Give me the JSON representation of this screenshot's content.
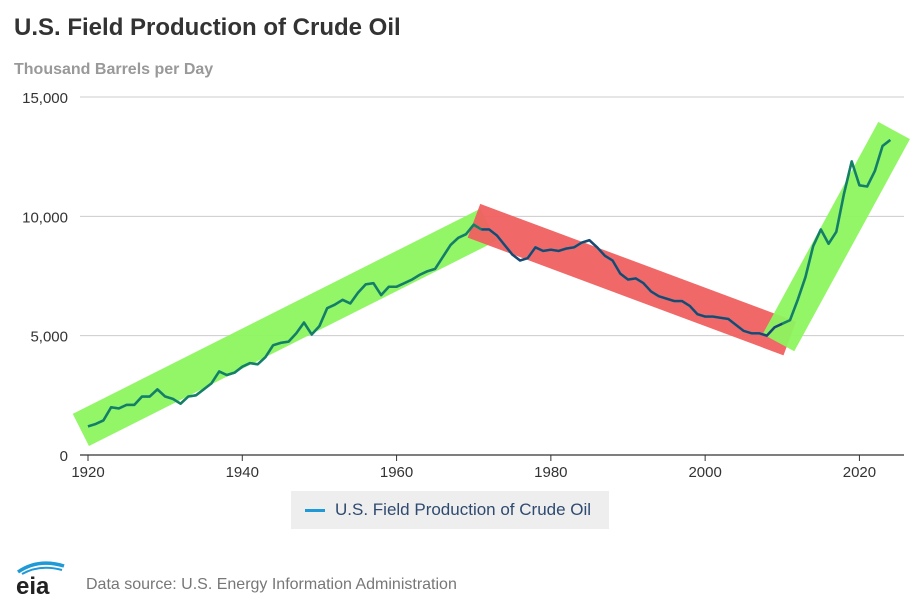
{
  "title": "U.S. Field Production of Crude Oil",
  "subtitle": "Thousand Barrels per Day",
  "legend": {
    "label": "U.S. Field Production of Crude Oil"
  },
  "source": "Data source: U.S. Energy Information Administration",
  "logo_text": "eia",
  "colors": {
    "series": "#1f9ad6",
    "up_trend_band": "#8cf55e",
    "down_trend_band": "#f06060",
    "line_over_green": "#147a4a",
    "line_over_red": "#1d3a5c",
    "grid": "#cccccc"
  },
  "chart_data": {
    "type": "line",
    "title": "U.S. Field Production of Crude Oil",
    "ylabel": "Thousand Barrels per Day",
    "xlim": [
      1920,
      2025
    ],
    "ylim": [
      0,
      15000
    ],
    "x_ticks": [
      1920,
      1940,
      1960,
      1980,
      2000,
      2020
    ],
    "y_ticks": [
      0,
      5000,
      10000,
      15000
    ],
    "y_tick_labels": [
      "0",
      "5,000",
      "10,000",
      "15,000"
    ],
    "grid": "horizontal",
    "legend_position": "bottom",
    "series": [
      {
        "name": "U.S. Field Production of Crude Oil",
        "x": [
          1920,
          1921,
          1922,
          1923,
          1924,
          1925,
          1926,
          1927,
          1928,
          1929,
          1930,
          1931,
          1932,
          1933,
          1934,
          1935,
          1936,
          1937,
          1938,
          1939,
          1940,
          1941,
          1942,
          1943,
          1944,
          1945,
          1946,
          1947,
          1948,
          1949,
          1950,
          1951,
          1952,
          1953,
          1954,
          1955,
          1956,
          1957,
          1958,
          1959,
          1960,
          1961,
          1962,
          1963,
          1964,
          1965,
          1966,
          1967,
          1968,
          1969,
          1970,
          1971,
          1972,
          1973,
          1974,
          1975,
          1976,
          1977,
          1978,
          1979,
          1980,
          1981,
          1982,
          1983,
          1984,
          1985,
          1986,
          1987,
          1988,
          1989,
          1990,
          1991,
          1992,
          1993,
          1994,
          1995,
          1996,
          1997,
          1998,
          1999,
          2000,
          2001,
          2002,
          2003,
          2004,
          2005,
          2006,
          2007,
          2008,
          2009,
          2010,
          2011,
          2012,
          2013,
          2014,
          2015,
          2016,
          2017,
          2018,
          2019,
          2020,
          2021,
          2022,
          2023,
          2024
        ],
        "values": [
          1200,
          1300,
          1450,
          2000,
          1950,
          2100,
          2100,
          2450,
          2450,
          2750,
          2450,
          2350,
          2150,
          2450,
          2500,
          2750,
          3000,
          3500,
          3350,
          3450,
          3700,
          3850,
          3800,
          4100,
          4600,
          4700,
          4750,
          5100,
          5550,
          5050,
          5400,
          6150,
          6300,
          6500,
          6350,
          6800,
          7150,
          7200,
          6700,
          7050,
          7050,
          7200,
          7350,
          7550,
          7700,
          7800,
          8300,
          8800,
          9100,
          9250,
          9650,
          9450,
          9450,
          9200,
          8800,
          8400,
          8150,
          8250,
          8700,
          8550,
          8600,
          8550,
          8650,
          8700,
          8900,
          9000,
          8700,
          8350,
          8150,
          7600,
          7350,
          7400,
          7200,
          6850,
          6650,
          6550,
          6450,
          6450,
          6250,
          5900,
          5800,
          5800,
          5750,
          5700,
          5450,
          5200,
          5100,
          5100,
          5000,
          5350,
          5500,
          5650,
          6500,
          7450,
          8750,
          9450,
          8850,
          9350,
          10950,
          12300,
          11300,
          11250,
          11900,
          12950,
          13200
        ]
      }
    ],
    "annotations": [
      {
        "type": "trend_band",
        "label": "up",
        "from": [
          1920,
          1200
        ],
        "to": [
          1971,
          9500
        ]
      },
      {
        "type": "trend_band",
        "label": "down",
        "from": [
          1971,
          9700
        ],
        "to": [
          2010,
          5000
        ]
      },
      {
        "type": "trend_band",
        "label": "up",
        "from": [
          2010,
          5000
        ],
        "to": [
          2024,
          13300
        ]
      }
    ]
  }
}
